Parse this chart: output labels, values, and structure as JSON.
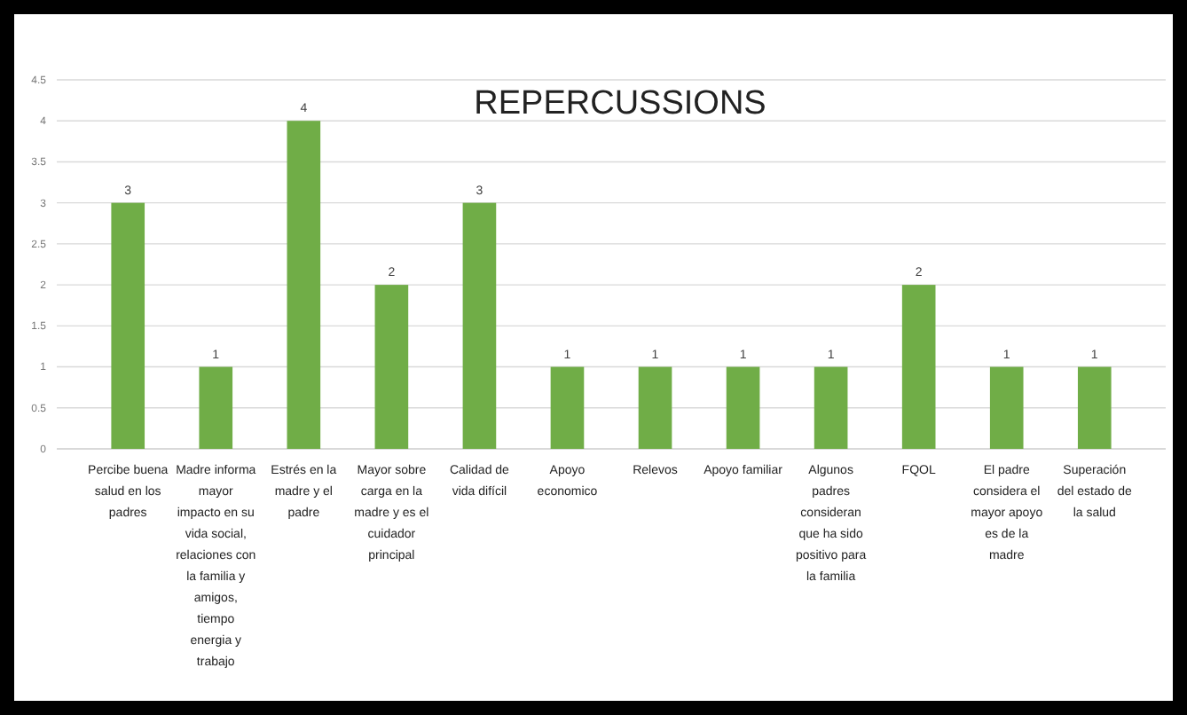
{
  "chart_data": {
    "type": "bar",
    "title": "REPERCUSSIONS",
    "categories": [
      "Percibe buena salud en los padres",
      "Madre informa mayor impacto en su vida social, relaciones con la familia y amigos, tiempo energia y trabajo",
      "Estrés en la madre y el padre",
      "Mayor sobre carga en la madre y es el cuidador principal",
      "Calidad de vida difícil",
      "Apoyo economico",
      "Relevos",
      "Apoyo familiar",
      "Algunos padres consideran que ha sido positivo para la familia",
      "FQOL",
      "El padre considera el mayor apoyo es de la madre",
      "Superación del estado de la salud"
    ],
    "values": [
      3,
      1,
      4,
      2,
      3,
      1,
      1,
      1,
      1,
      2,
      1,
      1
    ],
    "color": "#70ad47",
    "ylim": [
      0,
      4.5
    ],
    "yticks": [
      0,
      0.5,
      1,
      1.5,
      2,
      2.5,
      3,
      3.5,
      4,
      4.5
    ],
    "grid": "y",
    "data_labels": true
  }
}
